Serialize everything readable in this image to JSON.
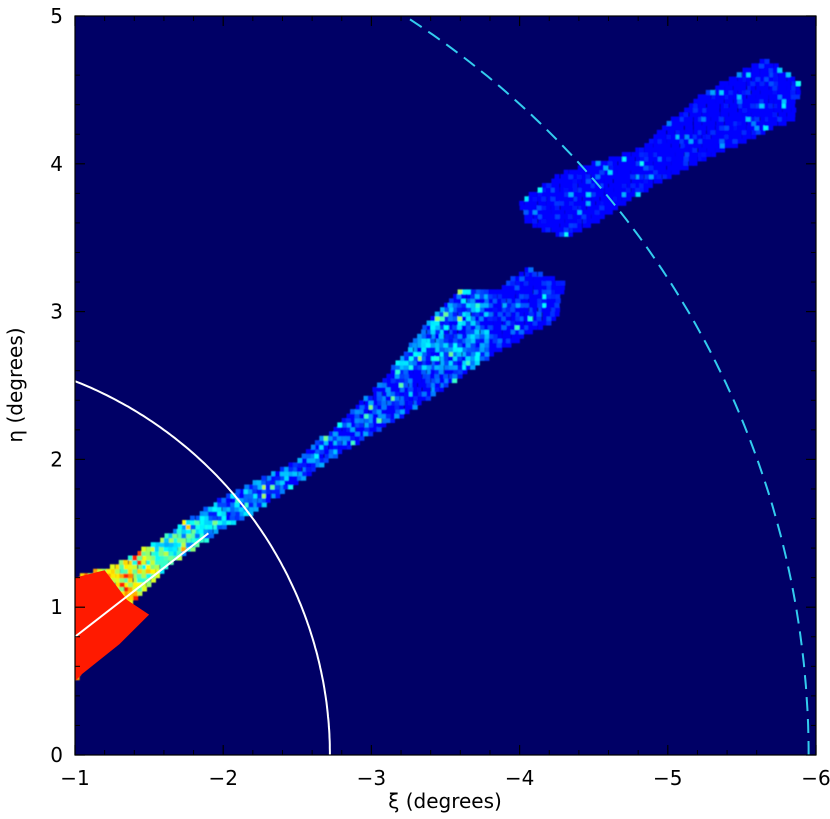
{
  "chart_data": {
    "type": "heatmap",
    "title": "",
    "xlabel": "ξ (degrees)",
    "ylabel": "η (degrees)",
    "xlim": [
      -1,
      -6
    ],
    "ylim": [
      0,
      5
    ],
    "x_ticks": [
      -1,
      -2,
      -3,
      -4,
      -5,
      -6
    ],
    "y_ticks": [
      0,
      1,
      2,
      3,
      4,
      5
    ],
    "x_tick_labels": [
      "−1",
      "−2",
      "−3",
      "−4",
      "−5",
      "−6"
    ],
    "y_tick_labels": [
      "0",
      "1",
      "2",
      "3",
      "4",
      "5"
    ],
    "background_color": "#000066",
    "colormap": "jet",
    "grid": false,
    "legend": "none",
    "stream_segments": [
      {
        "polygon": [
          [
            -1.0,
            0.5
          ],
          [
            -1.0,
            1.2
          ],
          [
            -1.3,
            1.3
          ],
          [
            -1.55,
            1.45
          ],
          [
            -2.0,
            1.75
          ],
          [
            -2.5,
            2.0
          ],
          [
            -3.0,
            2.45
          ],
          [
            -3.4,
            2.95
          ],
          [
            -3.6,
            3.15
          ],
          [
            -3.85,
            3.15
          ],
          [
            -4.05,
            3.3
          ],
          [
            -4.3,
            3.2
          ],
          [
            -4.25,
            2.95
          ],
          [
            -3.8,
            2.7
          ],
          [
            -3.3,
            2.35
          ],
          [
            -2.8,
            2.05
          ],
          [
            -2.3,
            1.7
          ],
          [
            -1.95,
            1.5
          ],
          [
            -1.6,
            1.25
          ],
          [
            -1.3,
            0.95
          ]
        ]
      },
      {
        "polygon": [
          [
            -4.0,
            3.75
          ],
          [
            -4.3,
            3.95
          ],
          [
            -4.8,
            4.1
          ],
          [
            -5.2,
            4.45
          ],
          [
            -5.65,
            4.72
          ],
          [
            -5.9,
            4.55
          ],
          [
            -5.85,
            4.3
          ],
          [
            -5.4,
            4.1
          ],
          [
            -4.9,
            3.85
          ],
          [
            -4.5,
            3.6
          ],
          [
            -4.3,
            3.5
          ],
          [
            -4.05,
            3.6
          ]
        ]
      }
    ],
    "red_core": [
      [
        -1.0,
        0.5
      ],
      [
        -1.0,
        1.2
      ],
      [
        -1.2,
        1.25
      ],
      [
        -1.35,
        1.05
      ],
      [
        -1.5,
        0.95
      ],
      [
        -1.3,
        0.75
      ],
      [
        -1.05,
        0.55
      ]
    ],
    "curves": [
      {
        "style": "solid",
        "color": "#ffffff",
        "shape": "circle",
        "center": [
          0,
          0
        ],
        "radius": 2.72
      },
      {
        "style": "dashed",
        "color": "#33ccee",
        "shape": "circle",
        "center": [
          0,
          0
        ],
        "radius": 5.95
      },
      {
        "style": "solid",
        "color": "#ffffff",
        "shape": "line",
        "from": [
          -1.0,
          0.8
        ],
        "to": [
          -1.9,
          1.5
        ]
      }
    ]
  }
}
